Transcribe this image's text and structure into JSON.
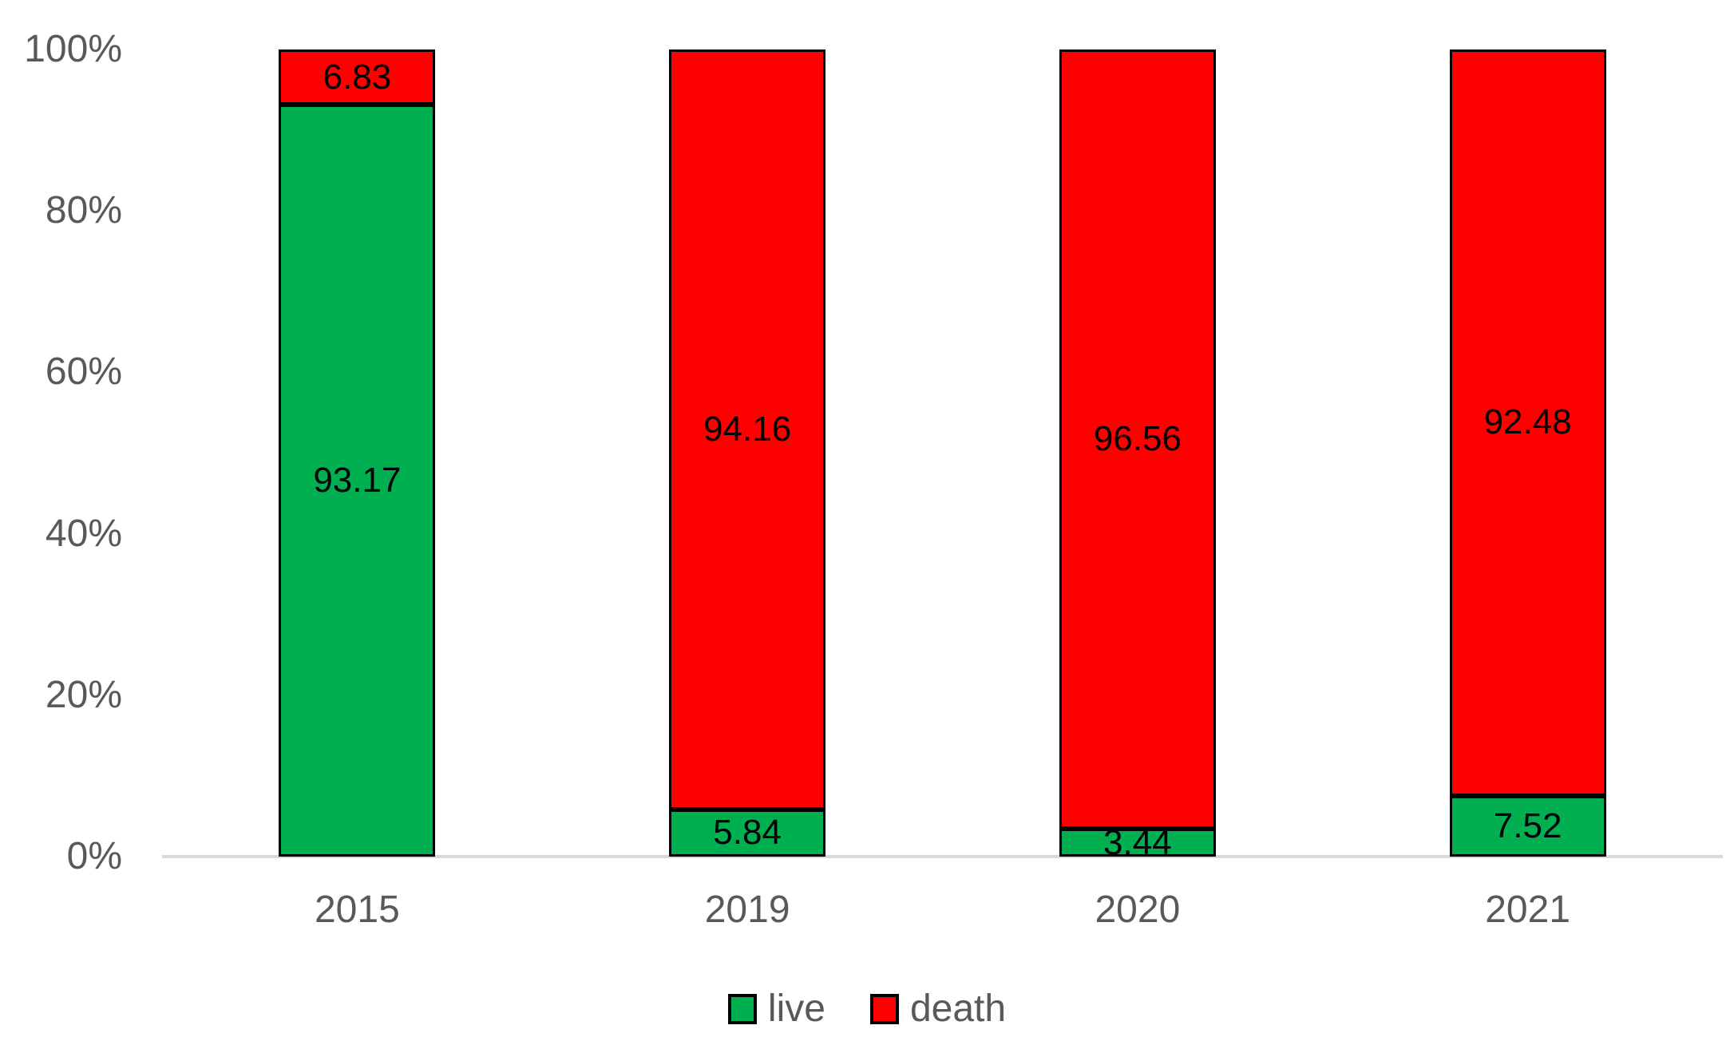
{
  "chart_data": {
    "type": "bar",
    "stacked": true,
    "percent_axis": true,
    "title": "",
    "xlabel": "",
    "ylabel": "",
    "categories": [
      "2015",
      "2019",
      "2020",
      "2021"
    ],
    "series": [
      {
        "name": "live",
        "color": "#00B050",
        "values": [
          93.17,
          5.84,
          3.44,
          7.52
        ],
        "labels": [
          "93.17",
          "5.84",
          "3.44",
          "7.52"
        ]
      },
      {
        "name": "death",
        "color": "#FF0000",
        "values": [
          6.83,
          94.16,
          96.56,
          92.48
        ],
        "labels": [
          "6.83",
          "94.16",
          "96.56",
          "92.48"
        ]
      }
    ],
    "y_axis": {
      "min": 0,
      "max": 100,
      "ticks": [
        "100%",
        "80%",
        "60%",
        "40%",
        "20%",
        "0%"
      ]
    },
    "grid": false,
    "legend": {
      "position": "bottom",
      "items": [
        {
          "label": "live",
          "color": "#00B050"
        },
        {
          "label": "death",
          "color": "#FF0000"
        }
      ]
    },
    "colors": {
      "data_label": "#000000",
      "axis_text": "#595959",
      "axis_line": "#D9D9D9",
      "bar_border": "#000000",
      "background": "#FFFFFF"
    }
  }
}
